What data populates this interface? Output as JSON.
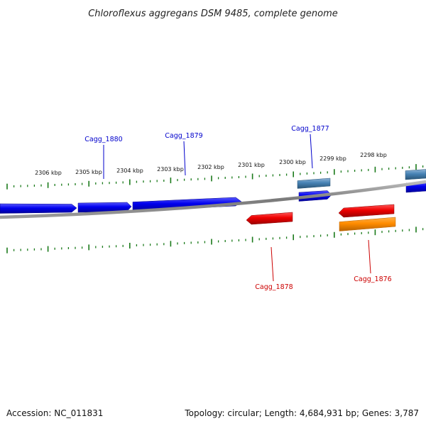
{
  "title": "Chloroflexus aggregans DSM 9485, complete genome",
  "footer": {
    "accession": "Accession: NC_011831",
    "summary": "Topology: circular; Length: 4,684,931 bp; Genes: 3,787"
  },
  "kbp_ticks": [
    {
      "value": 2306,
      "label": "2306 kbp"
    },
    {
      "value": 2305,
      "label": "2305 kbp"
    },
    {
      "value": 2304,
      "label": "2304 kbp"
    },
    {
      "value": 2303,
      "label": "2303 kbp"
    },
    {
      "value": 2302,
      "label": "2302 kbp"
    },
    {
      "value": 2301,
      "label": "2301 kbp"
    },
    {
      "value": 2300,
      "label": "2300 kbp"
    },
    {
      "value": 2299,
      "label": "2299 kbp"
    },
    {
      "value": 2298,
      "label": "2298 kbp"
    }
  ],
  "gene_labels": [
    {
      "name": "Cagg_1880",
      "strand": "forward"
    },
    {
      "name": "Cagg_1879",
      "strand": "forward"
    },
    {
      "name": "Cagg_1877",
      "strand": "forward"
    },
    {
      "name": "Cagg_1878",
      "strand": "reverse"
    },
    {
      "name": "Cagg_1876",
      "strand": "reverse"
    }
  ],
  "colors": {
    "forward_gene": "#0000ee",
    "reverse_gene": "#ee0000",
    "rna_feature": "#4682b4",
    "other_feature": "#ff8c00",
    "tick": "#1a7a1a",
    "backbone": "#808080",
    "forward_label": "#0000cc",
    "reverse_label": "#cc0000"
  }
}
